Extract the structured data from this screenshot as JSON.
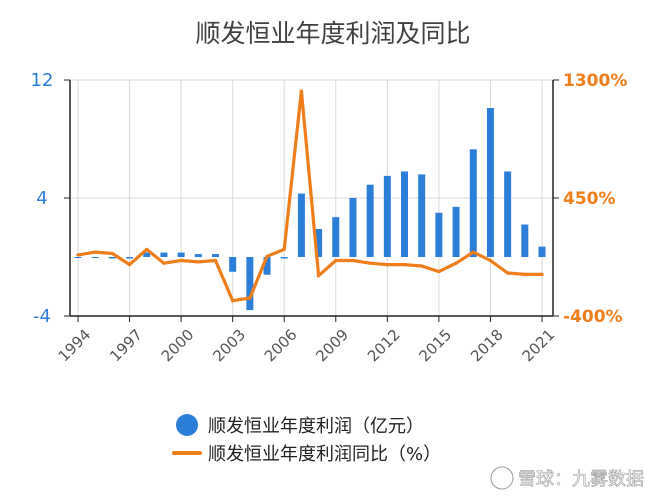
{
  "chart_data": {
    "type": "bar+line",
    "title": "顺发恒业年度利润及同比",
    "categories": [
      "1994",
      "1995",
      "1996",
      "1997",
      "1998",
      "1999",
      "2000",
      "2001",
      "2002",
      "2003",
      "2004",
      "2005",
      "2006",
      "2007",
      "2008",
      "2009",
      "2010",
      "2011",
      "2012",
      "2013",
      "2014",
      "2015",
      "2016",
      "2017",
      "2018",
      "2019",
      "2020",
      "2021"
    ],
    "x_tick_labels": [
      "1994",
      "1997",
      "2000",
      "2003",
      "2006",
      "2009",
      "2012",
      "2015",
      "2018",
      "2021"
    ],
    "series": [
      {
        "name": "顺发恒业年度利润（亿元）",
        "type": "bar",
        "axis": "left",
        "color": "#2b7fd8",
        "values": [
          0.0,
          0.0,
          -0.1,
          -0.1,
          0.3,
          0.3,
          0.3,
          0.2,
          0.2,
          -1.0,
          -3.6,
          -1.2,
          -0.1,
          4.3,
          1.9,
          2.7,
          4.0,
          4.9,
          5.5,
          5.8,
          5.6,
          3.0,
          3.4,
          7.3,
          10.1,
          5.8,
          2.2,
          0.7
        ]
      },
      {
        "name": "顺发恒业年度利润同比（%）",
        "type": "line",
        "axis": "right",
        "color": "#ef7d1a",
        "values": [
          40,
          60,
          50,
          -30,
          80,
          -20,
          0,
          -10,
          0,
          -290,
          -270,
          30,
          80,
          1220,
          -110,
          0,
          0,
          -20,
          -30,
          -30,
          -40,
          -80,
          -20,
          60,
          0,
          -90,
          -100,
          -100
        ]
      }
    ],
    "y_left": {
      "ylim": [
        -4,
        12
      ],
      "ticks": [
        "-4",
        "4",
        "12"
      ],
      "color": "#2b7fd8"
    },
    "y_right": {
      "ylim": [
        -400,
        1300
      ],
      "ticks": [
        "-400%",
        "450%",
        "1300%"
      ],
      "color": "#ef7d1a"
    },
    "legend": {
      "position": "bottom"
    },
    "grid": true
  },
  "watermark": "雪球：九雾数据"
}
